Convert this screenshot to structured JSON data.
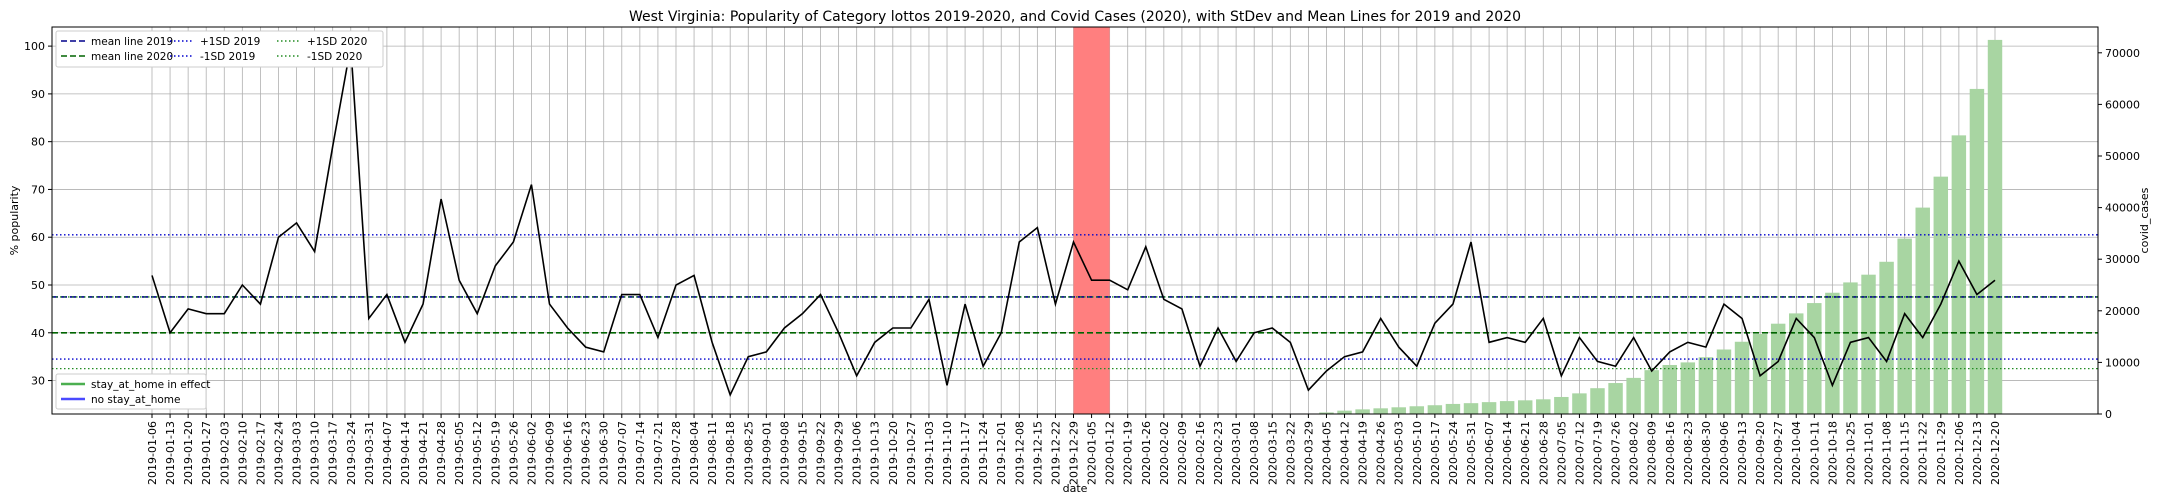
{
  "chart_data": {
    "type": "line",
    "title": "West Virginia: Popularity of Category lottos 2019-2020, and Covid Cases (2020), with StDev and Mean Lines for 2019 and 2020",
    "xlabel": "date",
    "ylabel": "% popularity",
    "y2label": "covid_cases",
    "ylim": [
      23,
      104
    ],
    "y2lim": [
      0,
      75000
    ],
    "yticks": [
      30,
      40,
      50,
      60,
      70,
      80,
      90,
      100
    ],
    "y2ticks": [
      0,
      10000,
      20000,
      30000,
      40000,
      50000,
      60000,
      70000
    ],
    "grid": true,
    "dates": [
      "2019-01-06",
      "2019-01-13",
      "2019-01-20",
      "2019-01-27",
      "2019-02-03",
      "2019-02-10",
      "2019-02-17",
      "2019-02-24",
      "2019-03-03",
      "2019-03-10",
      "2019-03-17",
      "2019-03-24",
      "2019-03-31",
      "2019-04-07",
      "2019-04-14",
      "2019-04-21",
      "2019-04-28",
      "2019-05-05",
      "2019-05-12",
      "2019-05-19",
      "2019-05-26",
      "2019-06-02",
      "2019-06-09",
      "2019-06-16",
      "2019-06-23",
      "2019-06-30",
      "2019-07-07",
      "2019-07-14",
      "2019-07-21",
      "2019-07-28",
      "2019-08-04",
      "2019-08-11",
      "2019-08-18",
      "2019-08-25",
      "2019-09-01",
      "2019-09-08",
      "2019-09-15",
      "2019-09-22",
      "2019-09-29",
      "2019-10-06",
      "2019-10-13",
      "2019-10-20",
      "2019-10-27",
      "2019-11-03",
      "2019-11-10",
      "2019-11-17",
      "2019-11-24",
      "2019-12-01",
      "2019-12-08",
      "2019-12-15",
      "2019-12-22",
      "2019-12-29",
      "2020-01-05",
      "2020-01-12",
      "2020-01-19",
      "2020-01-26",
      "2020-02-02",
      "2020-02-09",
      "2020-02-16",
      "2020-02-23",
      "2020-03-01",
      "2020-03-08",
      "2020-03-15",
      "2020-03-22",
      "2020-03-29",
      "2020-04-05",
      "2020-04-12",
      "2020-04-19",
      "2020-04-26",
      "2020-05-03",
      "2020-05-10",
      "2020-05-17",
      "2020-05-24",
      "2020-05-31",
      "2020-06-07",
      "2020-06-14",
      "2020-06-21",
      "2020-06-28",
      "2020-07-05",
      "2020-07-12",
      "2020-07-19",
      "2020-07-26",
      "2020-08-02",
      "2020-08-09",
      "2020-08-16",
      "2020-08-23",
      "2020-08-30",
      "2020-09-06",
      "2020-09-13",
      "2020-09-20",
      "2020-09-27",
      "2020-10-04",
      "2020-10-11",
      "2020-10-18",
      "2020-10-25",
      "2020-11-01",
      "2020-11-08",
      "2020-11-15",
      "2020-11-22",
      "2020-11-29",
      "2020-12-06",
      "2020-12-13",
      "2020-12-20"
    ],
    "popularity": [
      52,
      40,
      45,
      44,
      44,
      50,
      46,
      60,
      63,
      57,
      79,
      100,
      43,
      48,
      38,
      46,
      68,
      51,
      44,
      54,
      59,
      71,
      46,
      41,
      37,
      36,
      48,
      48,
      39,
      50,
      52,
      38,
      27,
      35,
      36,
      41,
      44,
      48,
      40,
      31,
      38,
      41,
      41,
      47,
      29,
      46,
      33,
      40,
      59,
      62,
      46,
      59,
      51,
      51,
      49,
      58,
      47,
      45,
      33,
      41,
      34,
      40,
      41,
      38,
      28,
      32,
      35,
      36,
      43,
      37,
      33,
      42,
      46,
      59,
      38,
      39,
      38,
      43,
      31,
      39,
      34,
      33,
      39,
      32,
      36,
      38,
      37,
      46,
      43,
      31,
      34,
      43,
      39,
      29,
      38,
      39,
      34,
      44,
      39,
      46,
      55,
      48,
      51
    ],
    "covid_cases": [
      0,
      0,
      0,
      0,
      0,
      0,
      0,
      0,
      0,
      0,
      0,
      0,
      0,
      0,
      0,
      0,
      0,
      0,
      0,
      0,
      0,
      0,
      0,
      0,
      0,
      0,
      0,
      0,
      0,
      0,
      0,
      0,
      0,
      0,
      0,
      0,
      0,
      0,
      0,
      0,
      0,
      0,
      0,
      0,
      0,
      0,
      0,
      0,
      0,
      0,
      0,
      0,
      0,
      0,
      0,
      0,
      0,
      0,
      0,
      0,
      0,
      0,
      0,
      0,
      0,
      300,
      650,
      900,
      1100,
      1300,
      1500,
      1700,
      1950,
      2100,
      2300,
      2500,
      2650,
      2850,
      3300,
      4000,
      5000,
      6000,
      7000,
      8500,
      9500,
      10000,
      11000,
      12500,
      14000,
      15500,
      17500,
      19500,
      21500,
      23500,
      25500,
      27000,
      29500,
      34000,
      40000,
      46000,
      54000,
      63000,
      72500
    ],
    "stay_at_home_dates": [
      "2020-01-05"
    ],
    "series": [
      {
        "name": "mean line 2019",
        "value": 47.5,
        "color": "#00008b",
        "style": "dashed"
      },
      {
        "name": "mean line 2020",
        "value": 40,
        "color": "#006400",
        "style": "dashed"
      },
      {
        "name": "+1SD 2019",
        "value": 60.5,
        "color": "#0000cd",
        "style": "dotted"
      },
      {
        "name": "-1SD 2019",
        "value": 34.5,
        "color": "#0000cd",
        "style": "dotted"
      },
      {
        "name": "+1SD 2020",
        "value": 47.5,
        "color": "#228b22",
        "style": "dotted"
      },
      {
        "name": "-1SD 2020",
        "value": 32.5,
        "color": "#228b22",
        "style": "dotted"
      }
    ],
    "legend_placement": "top-left",
    "legend2": [
      {
        "name": "stay_at_home in effect",
        "color": "#4caf50"
      },
      {
        "name": "no stay_at_home",
        "color": "#4a4aff"
      }
    ],
    "colors": {
      "line": "#000000",
      "bars": "#a8d5a2",
      "stay_at_home": "#ff7f7f",
      "grid": "#b0b0b0"
    }
  }
}
